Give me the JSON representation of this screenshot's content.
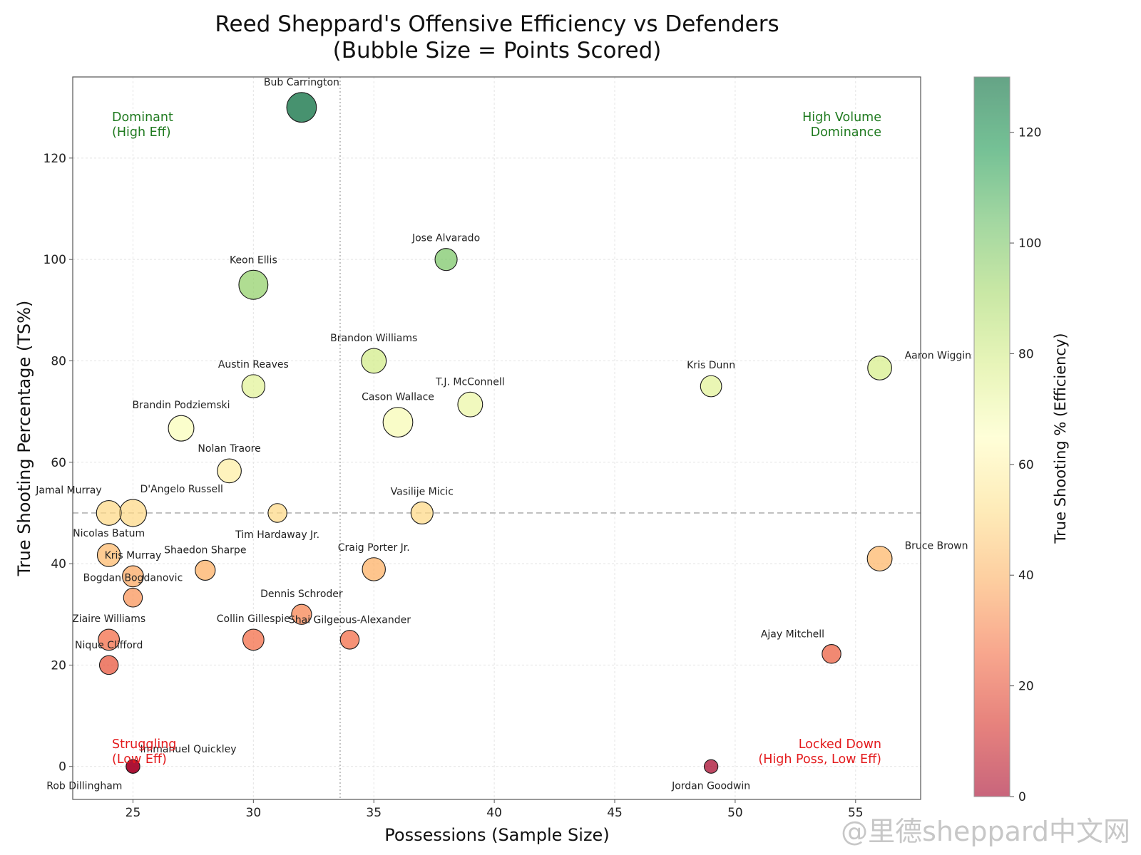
{
  "chart_data": {
    "type": "scatter",
    "title": "Reed Sheppard's Offensive Efficiency vs Defenders",
    "subtitle": "(Bubble Size = Points Scored)",
    "xlabel": "Possessions (Sample Size)",
    "ylabel": "True Shooting Percentage (TS%)",
    "xlim": [
      22.5,
      57.7
    ],
    "ylim": [
      -6.5,
      136
    ],
    "xticks": [
      25,
      30,
      35,
      40,
      45,
      50,
      55
    ],
    "yticks": [
      0,
      20,
      40,
      60,
      80,
      100,
      120
    ],
    "grid": true,
    "reference_lines": {
      "horizontal_y": 50,
      "vertical_x": 33.6
    },
    "colorbar": {
      "label": "True Shooting % (Efficiency)",
      "range": [
        0,
        130
      ],
      "ticks": [
        0,
        20,
        40,
        60,
        80,
        100,
        120
      ],
      "colormap": "RdYlGn"
    },
    "quadrant_labels": [
      {
        "text": [
          "Dominant",
          "(High Eff)"
        ],
        "position": "top-left",
        "color": "#1f7a1f"
      },
      {
        "text": [
          "High Volume",
          "Dominance"
        ],
        "position": "top-right",
        "color": "#1f7a1f"
      },
      {
        "text": [
          "Struggling",
          "(Low Eff)"
        ],
        "position": "bottom-left",
        "color": "#e31a1c"
      },
      {
        "text": [
          "Locked Down",
          "(High Poss, Low Eff)"
        ],
        "position": "bottom-right",
        "color": "#e31a1c"
      }
    ],
    "points": [
      {
        "name": "Bub Carrington",
        "x": 32,
        "y": 130,
        "points": 17,
        "label_dir": "above"
      },
      {
        "name": "Jose Alvarado",
        "x": 38,
        "y": 100,
        "points": 7,
        "label_dir": "above"
      },
      {
        "name": "Keon Ellis",
        "x": 30,
        "y": 95,
        "points": 16,
        "label_dir": "above"
      },
      {
        "name": "Brandon Williams",
        "x": 35,
        "y": 80,
        "points": 10,
        "label_dir": "above"
      },
      {
        "name": "Kris Dunn",
        "x": 49,
        "y": 75,
        "points": 6,
        "label_dir": "above"
      },
      {
        "name": "Aaron Wiggins",
        "x": 56,
        "y": 78.6,
        "points": 9,
        "label_dir": "offscreen"
      },
      {
        "name": "Austin Reaves",
        "x": 30,
        "y": 75,
        "points": 8,
        "label_dir": "above"
      },
      {
        "name": "T.J. McConnell",
        "x": 39,
        "y": 71.4,
        "points": 10,
        "label_dir": "above"
      },
      {
        "name": "Cason Wallace",
        "x": 36,
        "y": 67.9,
        "points": 17,
        "label_dir": "above"
      },
      {
        "name": "Brandin Podziemski",
        "x": 27,
        "y": 66.7,
        "points": 11,
        "label_dir": "above"
      },
      {
        "name": "Nolan Traore",
        "x": 29,
        "y": 58.3,
        "points": 9,
        "label_dir": "above"
      },
      {
        "name": "Jamal Murray",
        "x": 24,
        "y": 50,
        "points": 10,
        "label_dir": "above-left"
      },
      {
        "name": "D'Angelo Russell",
        "x": 25,
        "y": 50,
        "points": 13,
        "label_dir": "above-right"
      },
      {
        "name": "Tim Hardaway Jr.",
        "x": 31,
        "y": 50,
        "points": 4,
        "label_dir": "below"
      },
      {
        "name": "Vasilije Micic",
        "x": 37,
        "y": 50,
        "points": 7,
        "label_dir": "above"
      },
      {
        "name": "Nicolas Batum",
        "x": 24,
        "y": 41.7,
        "points": 8,
        "label_dir": "above"
      },
      {
        "name": "Bruce Brown",
        "x": 56,
        "y": 41,
        "points": 10,
        "label_dir": "right"
      },
      {
        "name": "Kris Murray",
        "x": 25,
        "y": 37.5,
        "points": 6,
        "label_dir": "above"
      },
      {
        "name": "Shaedon Sharpe",
        "x": 28,
        "y": 38.7,
        "points": 5,
        "label_dir": "above"
      },
      {
        "name": "Craig Porter Jr.",
        "x": 35,
        "y": 38.9,
        "points": 8,
        "label_dir": "above"
      },
      {
        "name": "Bogdan Bogdanovic",
        "x": 25,
        "y": 33.3,
        "points": 4,
        "label_dir": "above"
      },
      {
        "name": "Dennis Schroder",
        "x": 32,
        "y": 30,
        "points": 5,
        "label_dir": "above"
      },
      {
        "name": "Collin Gillespie",
        "x": 30,
        "y": 25,
        "points": 6,
        "label_dir": "above"
      },
      {
        "name": "Shai Gilgeous-Alexander",
        "x": 34,
        "y": 25,
        "points": 4,
        "label_dir": "above"
      },
      {
        "name": "Ziaire Williams",
        "x": 24,
        "y": 25,
        "points": 6,
        "label_dir": "above"
      },
      {
        "name": "Ajay Mitchell",
        "x": 54,
        "y": 22.2,
        "points": 4,
        "label_dir": "above-left"
      },
      {
        "name": "Nique Clifford",
        "x": 24,
        "y": 20,
        "points": 4,
        "label_dir": "above"
      },
      {
        "name": "Immanuel Quickley",
        "x": 25,
        "y": 0,
        "points": 1,
        "label_dir": "above-right"
      },
      {
        "name": "Rob Dillingham",
        "x": 25,
        "y": 0,
        "points": 1,
        "label_dir": "below-left"
      },
      {
        "name": "Jordan Goodwin",
        "x": 49,
        "y": 0,
        "points": 1,
        "label_dir": "below"
      }
    ]
  },
  "watermark": "@里德sheppard中文网"
}
